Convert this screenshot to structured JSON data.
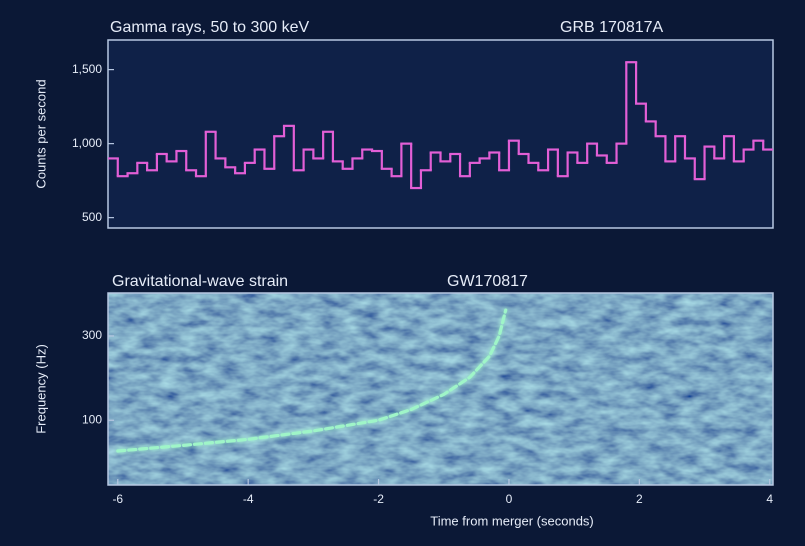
{
  "chart_data": [
    {
      "type": "histogram",
      "title": "Gamma rays, 50 to 300 keV",
      "annotation": "GRB 170817A",
      "ylabel": "Counts per second",
      "color": "#e25fd6",
      "bins": [
        -6.15,
        -6.0,
        -5.85,
        -5.7,
        -5.55,
        -5.4,
        -5.25,
        -5.1,
        -4.95,
        -4.8,
        -4.65,
        -4.5,
        -4.35,
        -4.2,
        -4.05,
        -3.9,
        -3.75,
        -3.6,
        -3.45,
        -3.3,
        -3.15,
        -3.0,
        -2.85,
        -2.7,
        -2.55,
        -2.4,
        -2.25,
        -2.1,
        -1.95,
        -1.8,
        -1.65,
        -1.5,
        -1.35,
        -1.2,
        -1.05,
        -0.9,
        -0.75,
        -0.6,
        -0.45,
        -0.3,
        -0.15,
        0,
        0.15,
        0.3,
        0.45,
        0.6,
        0.75,
        0.9,
        1.05,
        1.2,
        1.35,
        1.5,
        1.65,
        1.8,
        1.95,
        2.1,
        2.25,
        2.4,
        2.55,
        2.7,
        2.85,
        3.0,
        3.15,
        3.3,
        3.45,
        3.6,
        3.75,
        3.9,
        4.05
      ],
      "values": [
        900,
        780,
        800,
        870,
        820,
        930,
        880,
        950,
        820,
        780,
        1080,
        900,
        840,
        800,
        870,
        960,
        830,
        1050,
        1120,
        820,
        960,
        900,
        1080,
        880,
        830,
        900,
        960,
        950,
        830,
        780,
        1000,
        700,
        820,
        940,
        880,
        930,
        780,
        870,
        900,
        940,
        820,
        1020,
        930,
        870,
        820,
        960,
        780,
        940,
        870,
        1000,
        920,
        870,
        1000,
        1550,
        1270,
        1150,
        1050,
        880,
        1050,
        900,
        760,
        980,
        900,
        1050,
        880,
        960,
        1020,
        960
      ],
      "xlim": [
        -6.15,
        4.05
      ],
      "ylim": [
        430,
        1700
      ],
      "yticks": [
        500,
        {
          "value": 1000,
          "label": "1,000"
        },
        {
          "value": 1500,
          "label": "1,500"
        }
      ]
    },
    {
      "type": "spectrogram",
      "title": "Gravitational-wave strain",
      "annotation": "GW170817",
      "ylabel": "Frequency (Hz)",
      "xlabel": "Time from merger (seconds)",
      "color": "#9ff5c8",
      "x": [
        -6,
        -5,
        -4,
        -3,
        -2,
        -1.5,
        -1,
        -0.6,
        -0.3,
        -0.15,
        -0.05
      ],
      "y": [
        67,
        72,
        78,
        87,
        100,
        115,
        140,
        175,
        230,
        300,
        420
      ],
      "xlim": [
        -6.15,
        4.05
      ],
      "xticks": [
        -6,
        -4,
        -2,
        0,
        2,
        4
      ],
      "ylim": [
        43,
        525
      ],
      "yticks": [
        100,
        300
      ],
      "log_y": true
    }
  ]
}
